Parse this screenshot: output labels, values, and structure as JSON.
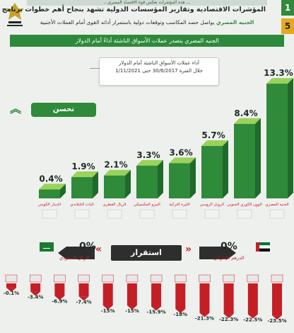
{
  "header": {
    "top_strip": "...هذه المؤشرات تعكس قوة الاقتصاد المصري ...",
    "title": "المؤشرات الاقتصادية وتقارير المؤسسات الدولية تشهد بنجاح أهم خطوات برنامج الإصلاح الاقتصادي",
    "subtitle_highlight": "الجنيه المصري",
    "subtitle_rest": "يواصل حصد المكاسب وتوقعات دولية باستمرار أدائه القوى أمام العملات الأجنبية",
    "badge_1": "1",
    "badge_5": "5"
  },
  "banner": "الجنيه المصري يتصدر عملات الأسواق الناشئة أداءً أمام الدولار",
  "legend": {
    "line1": "أداء عملات الأسواق الناشئة أمام الدولار",
    "line2": "خلال الفترة 30/6/2017 حتى 1/11/2021"
  },
  "improve_label": "تحسن",
  "stable_label": "استقرار",
  "colors": {
    "green": "#2f8a3a",
    "green_light": "#7cc242",
    "red": "#c41f26",
    "dark": "#2e2e2e"
  },
  "chart_data": {
    "type": "bar",
    "positive": {
      "categories": [
        "الجنيه المصري",
        "الوون الكوري الجنوبي",
        "الروبل الروسي",
        "الليرة التركية",
        "البيزو المكسيكي",
        "الريال القطري",
        "البات التايلاندي",
        "الدينار الكويتي"
      ],
      "values": [
        13.3,
        8.4,
        5.7,
        3.6,
        3.3,
        2.1,
        1.9,
        0.4
      ],
      "value_labels": [
        "13.3%",
        "8.4%",
        "5.7%",
        "3.6%",
        "3.3%",
        "2.1%",
        "1.9%",
        "0.4%"
      ]
    },
    "stable": {
      "categories": [
        "الدرهم الإماراتي",
        "الريال السعودي"
      ],
      "values": [
        0,
        0
      ],
      "value_labels": [
        "0%",
        "0%"
      ]
    },
    "negative": {
      "value_labels": [
        "-0.1%",
        "-3.4%",
        "-6.9%",
        "-7.4%",
        "-15%",
        "-15%",
        "-15.9%",
        "-18%",
        "-21.3%",
        "-22.3%",
        "-22.5%",
        "-23.5%"
      ]
    }
  }
}
